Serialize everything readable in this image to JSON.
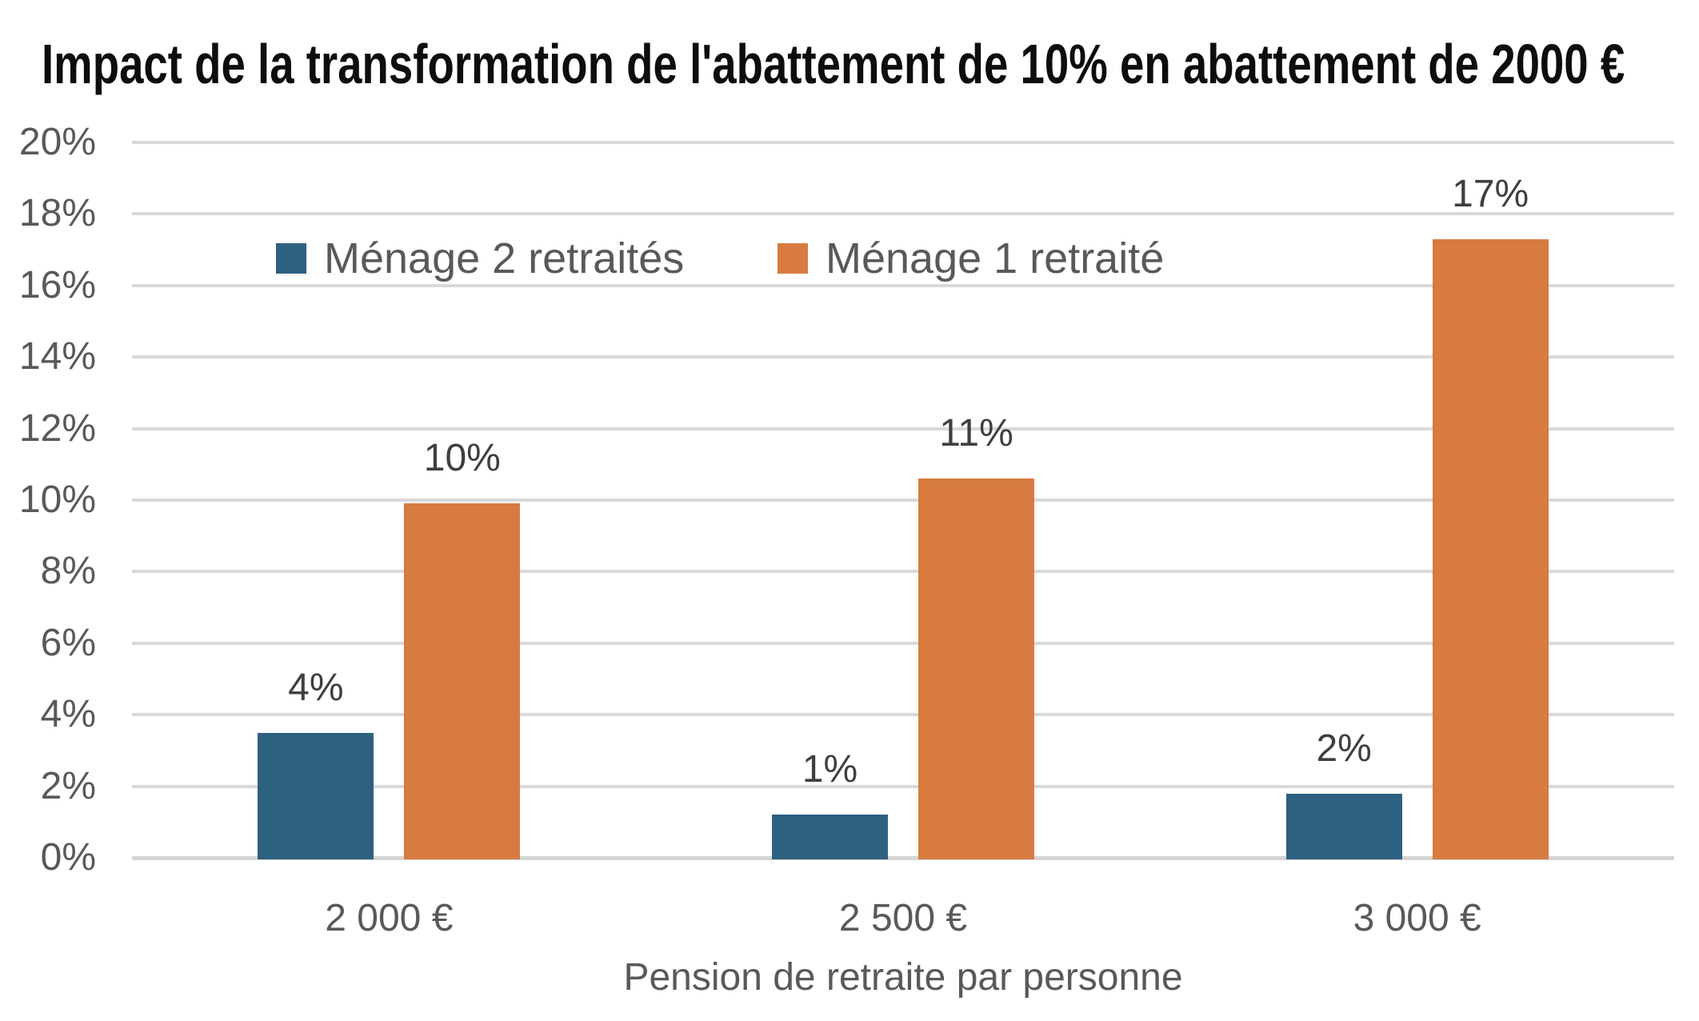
{
  "chart_data": {
    "type": "bar",
    "title": "Impact de la transformation de l'abattement de 10% en abattement de 2000 €",
    "xlabel": "Pension de retraite par personne",
    "ylabel": "",
    "categories": [
      "2 000 €",
      "2 500 €",
      "3 000 €"
    ],
    "series": [
      {
        "name": "Ménage 2 retraités",
        "color": "#2e6080",
        "values": [
          3.5,
          1.2,
          1.8
        ],
        "data_labels": [
          "4%",
          "1%",
          "2%"
        ]
      },
      {
        "name": "Ménage 1 retraité",
        "color": "#d87b41",
        "values": [
          9.9,
          10.6,
          17.3
        ],
        "data_labels": [
          "10%",
          "11%",
          "17%"
        ]
      }
    ],
    "ylim": [
      0,
      20
    ],
    "ytick_step": 2,
    "ytick_labels": [
      "0%",
      "2%",
      "4%",
      "6%",
      "8%",
      "10%",
      "12%",
      "14%",
      "16%",
      "18%",
      "20%"
    ],
    "grid": true,
    "legend_position": "top-inside",
    "colors": {
      "title_text": "#0d0d0d",
      "axis_text": "#595959",
      "data_label_text": "#3f3f3f",
      "gridline": "#d9d9d9"
    }
  }
}
